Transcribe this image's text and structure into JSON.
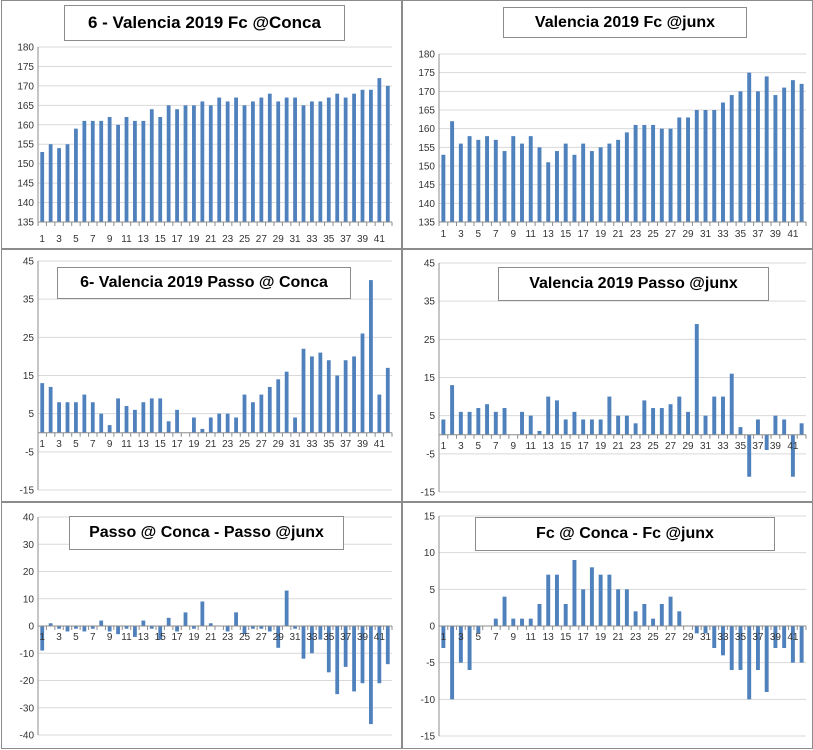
{
  "colors": {
    "bar": "#4f81bd",
    "grid": "#d9d9d9",
    "axis": "#8c8c8c"
  },
  "chart_data": [
    {
      "type": "bar",
      "title": "6 - Valencia 2019 Fc @Conca",
      "categories": [
        1,
        2,
        3,
        4,
        5,
        6,
        7,
        8,
        9,
        10,
        11,
        12,
        13,
        14,
        15,
        16,
        17,
        18,
        19,
        20,
        21,
        22,
        23,
        24,
        25,
        26,
        27,
        28,
        29,
        30,
        31,
        32,
        33,
        34,
        35,
        36,
        37,
        38,
        39,
        40,
        41,
        42
      ],
      "values": [
        153,
        155,
        154,
        155,
        159,
        161,
        161,
        161,
        162,
        160,
        162,
        161,
        161,
        164,
        162,
        165,
        164,
        165,
        165,
        166,
        165,
        167,
        166,
        167,
        165,
        166,
        167,
        168,
        166,
        167,
        167,
        165,
        166,
        166,
        167,
        168,
        167,
        168,
        169,
        169,
        172,
        170
      ],
      "ylim": [
        135,
        180
      ],
      "yticks": [
        135,
        140,
        145,
        150,
        155,
        160,
        165,
        170,
        175,
        180
      ],
      "xtick_labels": [
        "1",
        "3",
        "5",
        "7",
        "9",
        "11",
        "13",
        "15",
        "17",
        "19",
        "21",
        "23",
        "25",
        "27",
        "29",
        "31",
        "33",
        "35",
        "37",
        "39",
        "41"
      ],
      "grid": true
    },
    {
      "type": "bar",
      "title": "Valencia 2019  Fc @junx",
      "categories": [
        1,
        2,
        3,
        4,
        5,
        6,
        7,
        8,
        9,
        10,
        11,
        12,
        13,
        14,
        15,
        16,
        17,
        18,
        19,
        20,
        21,
        22,
        23,
        24,
        25,
        26,
        27,
        28,
        29,
        30,
        31,
        32,
        33,
        34,
        35,
        36,
        37,
        38,
        39,
        40,
        41,
        42
      ],
      "values": [
        153,
        162,
        156,
        158,
        157,
        158,
        157,
        154,
        158,
        156,
        158,
        155,
        151,
        154,
        156,
        153,
        156,
        154,
        155,
        156,
        157,
        159,
        161,
        161,
        161,
        160,
        160,
        163,
        163,
        165,
        165,
        165,
        167,
        169,
        170,
        175,
        170,
        174,
        169,
        171,
        173,
        172
      ],
      "ylim": [
        135,
        180
      ],
      "yticks": [
        135,
        140,
        145,
        150,
        155,
        160,
        165,
        170,
        175,
        180
      ],
      "xtick_labels": [
        "1",
        "3",
        "5",
        "7",
        "9",
        "11",
        "13",
        "15",
        "17",
        "19",
        "21",
        "23",
        "25",
        "27",
        "29",
        "31",
        "33",
        "35",
        "37",
        "39",
        "41"
      ],
      "grid": true
    },
    {
      "type": "bar",
      "title": "6- Valencia 2019  Passo @ Conca",
      "categories": [
        1,
        2,
        3,
        4,
        5,
        6,
        7,
        8,
        9,
        10,
        11,
        12,
        13,
        14,
        15,
        16,
        17,
        18,
        19,
        20,
        21,
        22,
        23,
        24,
        25,
        26,
        27,
        28,
        29,
        30,
        31,
        32,
        33,
        34,
        35,
        36,
        37,
        38,
        39,
        40,
        41,
        42
      ],
      "values": [
        13,
        12,
        8,
        8,
        8,
        10,
        8,
        5,
        2,
        9,
        7,
        6,
        8,
        9,
        9,
        3,
        6,
        0,
        4,
        1,
        4,
        5,
        5,
        4,
        10,
        8,
        10,
        12,
        14,
        16,
        4,
        22,
        20,
        21,
        19,
        15,
        19,
        20,
        26,
        40,
        10,
        17
      ],
      "ylim": [
        -15,
        45
      ],
      "yticks": [
        -15,
        -5,
        5,
        15,
        25,
        35,
        45
      ],
      "xtick_labels": [
        "1",
        "3",
        "5",
        "7",
        "9",
        "11",
        "13",
        "15",
        "17",
        "19",
        "21",
        "23",
        "25",
        "27",
        "29",
        "31",
        "33",
        "35",
        "37",
        "39",
        "41"
      ],
      "grid": true
    },
    {
      "type": "bar",
      "title": "Valencia 2019  Passo @junx",
      "categories": [
        1,
        2,
        3,
        4,
        5,
        6,
        7,
        8,
        9,
        10,
        11,
        12,
        13,
        14,
        15,
        16,
        17,
        18,
        19,
        20,
        21,
        22,
        23,
        24,
        25,
        26,
        27,
        28,
        29,
        30,
        31,
        32,
        33,
        34,
        35,
        36,
        37,
        38,
        39,
        40,
        41,
        42
      ],
      "values": [
        4,
        13,
        6,
        6,
        7,
        8,
        6,
        7,
        0,
        6,
        5,
        1,
        10,
        9,
        4,
        6,
        4,
        4,
        4,
        10,
        5,
        5,
        3,
        9,
        7,
        7,
        8,
        10,
        6,
        29,
        5,
        10,
        10,
        16,
        2,
        -11,
        4,
        -4,
        5,
        4,
        -11,
        3
      ],
      "ylim": [
        -15,
        45
      ],
      "yticks": [
        -15,
        -5,
        5,
        15,
        25,
        35,
        45
      ],
      "xtick_labels": [
        "1",
        "3",
        "5",
        "7",
        "9",
        "11",
        "13",
        "15",
        "17",
        "19",
        "21",
        "23",
        "25",
        "27",
        "29",
        "31",
        "33",
        "35",
        "37",
        "39",
        "41"
      ],
      "grid": true
    },
    {
      "type": "bar",
      "title": "Passo @ Conca - Passo @junx",
      "categories": [
        1,
        2,
        3,
        4,
        5,
        6,
        7,
        8,
        9,
        10,
        11,
        12,
        13,
        14,
        15,
        16,
        17,
        18,
        19,
        20,
        21,
        22,
        23,
        24,
        25,
        26,
        27,
        28,
        29,
        30,
        31,
        32,
        33,
        34,
        35,
        36,
        37,
        38,
        39,
        40,
        41,
        42
      ],
      "values": [
        -9,
        1,
        -1,
        -2,
        -1,
        -2,
        -1,
        2,
        -2,
        -3,
        -1,
        -4,
        2,
        -1,
        -5,
        3,
        -2,
        5,
        -1,
        9,
        1,
        0,
        -2,
        5,
        -3,
        -1,
        -1,
        -2,
        -8,
        13,
        -1,
        -12,
        -10,
        -5,
        -17,
        -25,
        -15,
        -24,
        -21,
        -36,
        -21,
        -14
      ],
      "ylim": [
        -40,
        40
      ],
      "yticks": [
        -40,
        -30,
        -20,
        -10,
        0,
        10,
        20,
        30,
        40
      ],
      "xtick_labels": [
        "1",
        "3",
        "5",
        "7",
        "9",
        "11",
        "13",
        "15",
        "17",
        "19",
        "21",
        "23",
        "25",
        "27",
        "29",
        "31",
        "33",
        "35",
        "37",
        "39",
        "41"
      ],
      "grid": true
    },
    {
      "type": "bar",
      "title": "Fc @ Conca - Fc @junx",
      "categories": [
        1,
        2,
        3,
        4,
        5,
        6,
        7,
        8,
        9,
        10,
        11,
        12,
        13,
        14,
        15,
        16,
        17,
        18,
        19,
        20,
        21,
        22,
        23,
        24,
        25,
        26,
        27,
        28,
        29,
        30,
        31,
        32,
        33,
        34,
        35,
        36,
        37,
        38,
        39,
        40,
        41,
        42
      ],
      "values": [
        -3,
        -10,
        -5,
        -6,
        -1,
        0,
        1,
        4,
        1,
        1,
        1,
        3,
        7,
        7,
        3,
        9,
        5,
        8,
        7,
        7,
        5,
        5,
        2,
        3,
        1,
        3,
        4,
        2,
        0,
        -1,
        -1,
        -3,
        -4,
        -6,
        -6,
        -10,
        -6,
        -9,
        -3,
        -3,
        -5,
        -5
      ],
      "ylim": [
        -15,
        15
      ],
      "yticks": [
        -15,
        -10,
        -5,
        0,
        5,
        10,
        15
      ],
      "xtick_labels": [
        "1",
        "3",
        "5",
        "7",
        "9",
        "11",
        "13",
        "15",
        "17",
        "19",
        "21",
        "23",
        "25",
        "27",
        "29",
        "31",
        "33",
        "35",
        "37",
        "39",
        "41"
      ],
      "grid": true
    }
  ]
}
